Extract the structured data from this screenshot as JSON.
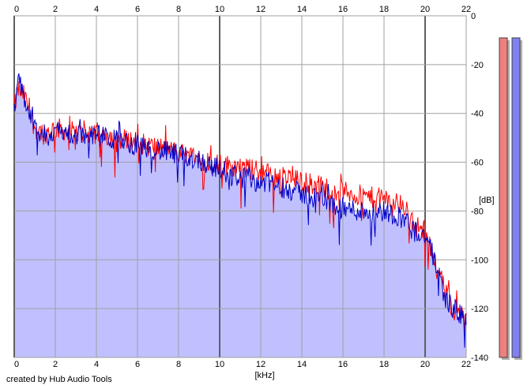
{
  "chart_data": {
    "type": "area",
    "xlabel": "[kHz]",
    "ylabel": "[dB]",
    "xlim": [
      0,
      22
    ],
    "ylim": [
      -140,
      0
    ],
    "x_ticks": [
      0,
      2,
      4,
      6,
      8,
      10,
      12,
      14,
      16,
      18,
      20,
      22
    ],
    "y_ticks": [
      0,
      -20,
      -40,
      -60,
      -80,
      -100,
      -120,
      -140
    ],
    "y_tick_labels": [
      "0",
      "-20",
      "-40",
      "-60",
      "-80",
      "-100",
      "-120",
      "-140"
    ],
    "grid": true,
    "x": [
      0,
      0.2,
      0.5,
      1,
      1.5,
      2,
      3,
      4,
      5,
      6,
      7,
      8,
      9,
      10,
      11,
      12,
      13,
      14,
      15,
      16,
      17,
      18,
      19,
      19.5,
      20,
      20.5,
      21,
      21.5,
      22
    ],
    "series": [
      {
        "color": "#ff0000",
        "values": [
          -38,
          -30,
          -33,
          -46,
          -48,
          -46,
          -48,
          -48,
          -50,
          -52,
          -54,
          -56,
          -58,
          -61,
          -62,
          -64,
          -66,
          -68,
          -70,
          -72,
          -74,
          -75,
          -78,
          -86,
          -88,
          -100,
          -114,
          -122,
          -120
        ]
      },
      {
        "color": "#0000c8",
        "values": [
          -40,
          -26,
          -34,
          -47,
          -49,
          -47,
          -49,
          -49,
          -51,
          -53,
          -55,
          -57,
          -59,
          -63,
          -66,
          -68,
          -70,
          -73,
          -75,
          -79,
          -80,
          -80,
          -83,
          -88,
          -90,
          -101,
          -116,
          -121,
          -125
        ]
      }
    ],
    "fill_color": "#c0c0ff",
    "meter_colors": [
      "#f08080",
      "#8080f0"
    ]
  },
  "credit": "created by Hub Audio Tools"
}
